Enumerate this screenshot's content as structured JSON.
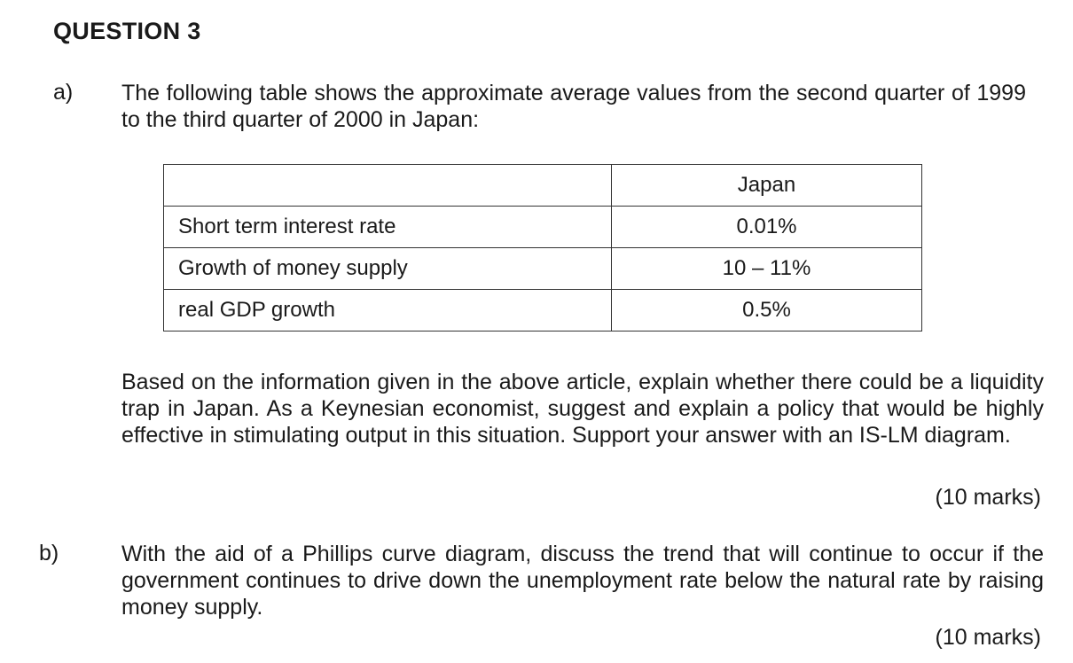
{
  "question_title": "QUESTION 3",
  "part_a": {
    "letter": "a)",
    "intro": "The following table shows the approximate average values from the second quarter of 1999 to the third quarter of 2000 in Japan:",
    "table": {
      "header": [
        "",
        "Japan"
      ],
      "rows": [
        {
          "label": "Short term interest rate",
          "value": "0.01%"
        },
        {
          "label": "Growth of money supply",
          "value": "10 – 11%"
        },
        {
          "label": "real GDP growth",
          "value": "0.5%"
        }
      ]
    },
    "question": "Based on the information given in the above article, explain whether there could be a liquidity trap in Japan. As a Keynesian economist, suggest and explain a policy that would be highly effective in stimulating output in this situation. Support your answer with an IS-LM diagram.",
    "marks": "(10 marks)"
  },
  "part_b": {
    "letter": "b)",
    "question": "With the aid of a Phillips curve diagram, discuss the trend that will continue to occur if the government continues to drive down the unemployment rate below the natural rate by raising money supply.",
    "marks": "(10 marks)"
  }
}
